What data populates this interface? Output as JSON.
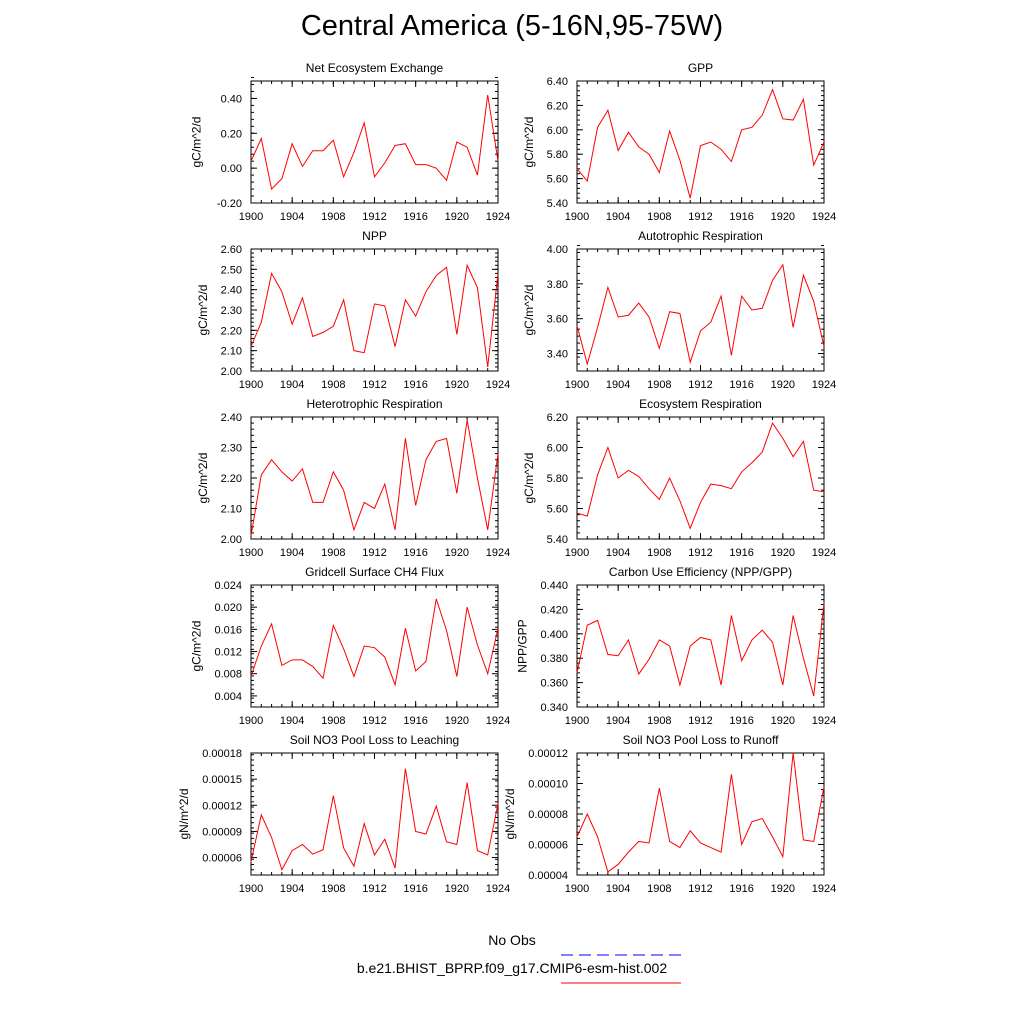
{
  "main_title": "Central America (5-16N,95-75W)",
  "colors": {
    "model_line": "#ff0000",
    "obs_line": "#0000ff",
    "axis": "#000000"
  },
  "legend": {
    "obs_label": "No Obs",
    "model_label": "b.e21.BHIST_BPRP.f09_g17.CMIP6-esm-hist.002"
  },
  "chart_data": [
    {
      "type": "line",
      "title": "Net Ecosystem Exchange",
      "ylabel": "gC/m^2/d",
      "xlim": [
        1900,
        1924
      ],
      "ylim": [
        -0.2,
        0.5
      ],
      "xticks": [
        1900,
        1904,
        1908,
        1912,
        1916,
        1920,
        1924
      ],
      "xtick_labels": [
        "1900",
        "1904",
        "1908",
        "1912",
        "1916",
        "1920",
        "1924"
      ],
      "yticks": [
        -0.2,
        0.0,
        0.2,
        0.4
      ],
      "ytick_labels": [
        "-0.20",
        "0.00",
        "0.20",
        "0.40"
      ],
      "minor_y_step": 0.04,
      "x": [
        1900,
        1901,
        1902,
        1903,
        1904,
        1905,
        1906,
        1907,
        1908,
        1909,
        1910,
        1911,
        1912,
        1913,
        1914,
        1915,
        1916,
        1917,
        1918,
        1919,
        1920,
        1921,
        1922,
        1923,
        1924
      ],
      "series": [
        {
          "name": "b.e21.BHIST_BPRP.f09_g17.CMIP6-esm-hist.002",
          "values": [
            0.04,
            0.17,
            -0.12,
            -0.06,
            0.14,
            0.01,
            0.1,
            0.1,
            0.16,
            -0.05,
            0.09,
            0.26,
            -0.05,
            0.03,
            0.13,
            0.14,
            0.02,
            0.02,
            0.0,
            -0.07,
            0.15,
            0.12,
            -0.04,
            0.42,
            0.04
          ]
        }
      ]
    },
    {
      "type": "line",
      "title": "GPP",
      "ylabel": "gC/m^2/d",
      "xlim": [
        1900,
        1924
      ],
      "ylim": [
        5.4,
        6.4
      ],
      "xticks": [
        1900,
        1904,
        1908,
        1912,
        1916,
        1920,
        1924
      ],
      "xtick_labels": [
        "1900",
        "1904",
        "1908",
        "1912",
        "1916",
        "1920",
        "1924"
      ],
      "yticks": [
        5.4,
        5.6,
        5.8,
        6.0,
        6.2,
        6.4
      ],
      "ytick_labels": [
        "5.40",
        "5.60",
        "5.80",
        "6.00",
        "6.20",
        "6.40"
      ],
      "minor_y_step": 0.04,
      "x": [
        1900,
        1901,
        1902,
        1903,
        1904,
        1905,
        1906,
        1907,
        1908,
        1909,
        1910,
        1911,
        1912,
        1913,
        1914,
        1915,
        1916,
        1917,
        1918,
        1919,
        1920,
        1921,
        1922,
        1923,
        1924
      ],
      "series": [
        {
          "name": "b.e21.BHIST_BPRP.f09_g17.CMIP6-esm-hist.002",
          "values": [
            5.68,
            5.58,
            6.02,
            6.16,
            5.83,
            5.98,
            5.86,
            5.8,
            5.65,
            5.99,
            5.75,
            5.44,
            5.87,
            5.9,
            5.84,
            5.74,
            6.0,
            6.02,
            6.12,
            6.33,
            6.09,
            6.08,
            6.25,
            5.71,
            5.9
          ]
        }
      ]
    },
    {
      "type": "line",
      "title": "NPP",
      "ylabel": "gC/m^2/d",
      "xlim": [
        1900,
        1924
      ],
      "ylim": [
        2.0,
        2.6
      ],
      "xticks": [
        1900,
        1904,
        1908,
        1912,
        1916,
        1920,
        1924
      ],
      "xtick_labels": [
        "1900",
        "1904",
        "1908",
        "1912",
        "1916",
        "1920",
        "1924"
      ],
      "yticks": [
        2.0,
        2.1,
        2.2,
        2.3,
        2.4,
        2.5,
        2.6
      ],
      "ytick_labels": [
        "2.00",
        "2.10",
        "2.20",
        "2.30",
        "2.40",
        "2.50",
        "2.60"
      ],
      "minor_y_step": 0.02,
      "x": [
        1900,
        1901,
        1902,
        1903,
        1904,
        1905,
        1906,
        1907,
        1908,
        1909,
        1910,
        1911,
        1912,
        1913,
        1914,
        1915,
        1916,
        1917,
        1918,
        1919,
        1920,
        1921,
        1922,
        1923,
        1924
      ],
      "series": [
        {
          "name": "b.e21.BHIST_BPRP.f09_g17.CMIP6-esm-hist.002",
          "values": [
            2.12,
            2.24,
            2.48,
            2.39,
            2.23,
            2.36,
            2.17,
            2.19,
            2.22,
            2.35,
            2.1,
            2.09,
            2.33,
            2.32,
            2.12,
            2.35,
            2.27,
            2.39,
            2.47,
            2.51,
            2.18,
            2.52,
            2.41,
            2.02,
            2.48
          ]
        }
      ]
    },
    {
      "type": "line",
      "title": "Autotrophic Respiration",
      "ylabel": "gC/m^2/d",
      "xlim": [
        1900,
        1924
      ],
      "ylim": [
        3.3,
        4.0
      ],
      "xticks": [
        1900,
        1904,
        1908,
        1912,
        1916,
        1920,
        1924
      ],
      "xtick_labels": [
        "1900",
        "1904",
        "1908",
        "1912",
        "1916",
        "1920",
        "1924"
      ],
      "yticks": [
        3.4,
        3.6,
        3.8,
        4.0
      ],
      "ytick_labels": [
        "3.40",
        "3.60",
        "3.80",
        "4.00"
      ],
      "minor_y_step": 0.04,
      "x": [
        1900,
        1901,
        1902,
        1903,
        1904,
        1905,
        1906,
        1907,
        1908,
        1909,
        1910,
        1911,
        1912,
        1913,
        1914,
        1915,
        1916,
        1917,
        1918,
        1919,
        1920,
        1921,
        1922,
        1923,
        1924
      ],
      "series": [
        {
          "name": "b.e21.BHIST_BPRP.f09_g17.CMIP6-esm-hist.002",
          "values": [
            3.56,
            3.34,
            3.55,
            3.78,
            3.61,
            3.62,
            3.69,
            3.61,
            3.43,
            3.64,
            3.63,
            3.35,
            3.53,
            3.58,
            3.73,
            3.39,
            3.73,
            3.65,
            3.66,
            3.82,
            3.91,
            3.55,
            3.85,
            3.7,
            3.44
          ]
        }
      ]
    },
    {
      "type": "line",
      "title": "Heterotrophic Respiration",
      "ylabel": "gC/m^2/d",
      "xlim": [
        1900,
        1924
      ],
      "ylim": [
        2.0,
        2.4
      ],
      "xticks": [
        1900,
        1904,
        1908,
        1912,
        1916,
        1920,
        1924
      ],
      "xtick_labels": [
        "1900",
        "1904",
        "1908",
        "1912",
        "1916",
        "1920",
        "1924"
      ],
      "yticks": [
        2.0,
        2.1,
        2.2,
        2.3,
        2.4
      ],
      "ytick_labels": [
        "2.00",
        "2.10",
        "2.20",
        "2.30",
        "2.40"
      ],
      "minor_y_step": 0.02,
      "x": [
        1900,
        1901,
        1902,
        1903,
        1904,
        1905,
        1906,
        1907,
        1908,
        1909,
        1910,
        1911,
        1912,
        1913,
        1914,
        1915,
        1916,
        1917,
        1918,
        1919,
        1920,
        1921,
        1922,
        1923,
        1924
      ],
      "series": [
        {
          "name": "b.e21.BHIST_BPRP.f09_g17.CMIP6-esm-hist.002",
          "values": [
            2.01,
            2.21,
            2.26,
            2.22,
            2.19,
            2.23,
            2.12,
            2.12,
            2.22,
            2.16,
            2.03,
            2.12,
            2.1,
            2.18,
            2.03,
            2.33,
            2.11,
            2.26,
            2.32,
            2.33,
            2.15,
            2.39,
            2.2,
            2.03,
            2.28
          ]
        }
      ]
    },
    {
      "type": "line",
      "title": "Ecosystem Respiration",
      "ylabel": "gC/m^2/d",
      "xlim": [
        1900,
        1924
      ],
      "ylim": [
        5.4,
        6.2
      ],
      "xticks": [
        1900,
        1904,
        1908,
        1912,
        1916,
        1920,
        1924
      ],
      "xtick_labels": [
        "1900",
        "1904",
        "1908",
        "1912",
        "1916",
        "1920",
        "1924"
      ],
      "yticks": [
        5.4,
        5.6,
        5.8,
        6.0,
        6.2
      ],
      "ytick_labels": [
        "5.40",
        "5.60",
        "5.80",
        "6.00",
        "6.20"
      ],
      "minor_y_step": 0.04,
      "x": [
        1900,
        1901,
        1902,
        1903,
        1904,
        1905,
        1906,
        1907,
        1908,
        1909,
        1910,
        1911,
        1912,
        1913,
        1914,
        1915,
        1916,
        1917,
        1918,
        1919,
        1920,
        1921,
        1922,
        1923,
        1924
      ],
      "series": [
        {
          "name": "b.e21.BHIST_BPRP.f09_g17.CMIP6-esm-hist.002",
          "values": [
            5.57,
            5.55,
            5.82,
            6.0,
            5.8,
            5.85,
            5.81,
            5.73,
            5.66,
            5.8,
            5.65,
            5.47,
            5.64,
            5.76,
            5.75,
            5.73,
            5.84,
            5.9,
            5.97,
            6.16,
            6.06,
            5.94,
            6.04,
            5.72,
            5.71
          ]
        }
      ]
    },
    {
      "type": "line",
      "title": "Gridcell Surface CH4 Flux",
      "ylabel": "gC/m^2/d",
      "xlim": [
        1900,
        1924
      ],
      "ylim": [
        0.002,
        0.024
      ],
      "xticks": [
        1900,
        1904,
        1908,
        1912,
        1916,
        1920,
        1924
      ],
      "xtick_labels": [
        "1900",
        "1904",
        "1908",
        "1912",
        "1916",
        "1920",
        "1924"
      ],
      "yticks": [
        0.004,
        0.008,
        0.012,
        0.016,
        0.02,
        0.024
      ],
      "ytick_labels": [
        "0.004",
        "0.008",
        "0.012",
        "0.016",
        "0.020",
        "0.024"
      ],
      "minor_y_step": 0.0008,
      "x": [
        1900,
        1901,
        1902,
        1903,
        1904,
        1905,
        1906,
        1907,
        1908,
        1909,
        1910,
        1911,
        1912,
        1913,
        1914,
        1915,
        1916,
        1917,
        1918,
        1919,
        1920,
        1921,
        1922,
        1923,
        1924
      ],
      "series": [
        {
          "name": "b.e21.BHIST_BPRP.f09_g17.CMIP6-esm-hist.002",
          "values": [
            0.0075,
            0.013,
            0.017,
            0.0095,
            0.0105,
            0.0105,
            0.0093,
            0.0072,
            0.0167,
            0.0125,
            0.0075,
            0.013,
            0.0127,
            0.011,
            0.006,
            0.0162,
            0.0085,
            0.0102,
            0.0215,
            0.0158,
            0.0075,
            0.02,
            0.0132,
            0.008,
            0.0162
          ]
        }
      ]
    },
    {
      "type": "line",
      "title": "Carbon Use Efficiency (NPP/GPP)",
      "ylabel": "NPP/GPP",
      "xlim": [
        1900,
        1924
      ],
      "ylim": [
        0.34,
        0.44
      ],
      "xticks": [
        1900,
        1904,
        1908,
        1912,
        1916,
        1920,
        1924
      ],
      "xtick_labels": [
        "1900",
        "1904",
        "1908",
        "1912",
        "1916",
        "1920",
        "1924"
      ],
      "yticks": [
        0.34,
        0.36,
        0.38,
        0.4,
        0.42,
        0.44
      ],
      "ytick_labels": [
        "0.340",
        "0.360",
        "0.380",
        "0.400",
        "0.420",
        "0.440"
      ],
      "minor_y_step": 0.004,
      "x": [
        1900,
        1901,
        1902,
        1903,
        1904,
        1905,
        1906,
        1907,
        1908,
        1909,
        1910,
        1911,
        1912,
        1913,
        1914,
        1915,
        1916,
        1917,
        1918,
        1919,
        1920,
        1921,
        1922,
        1923,
        1924
      ],
      "series": [
        {
          "name": "b.e21.BHIST_BPRP.f09_g17.CMIP6-esm-hist.002",
          "values": [
            0.368,
            0.407,
            0.411,
            0.383,
            0.382,
            0.395,
            0.367,
            0.379,
            0.395,
            0.39,
            0.358,
            0.39,
            0.397,
            0.395,
            0.358,
            0.415,
            0.378,
            0.395,
            0.403,
            0.393,
            0.358,
            0.415,
            0.38,
            0.349,
            0.425
          ]
        }
      ]
    },
    {
      "type": "line",
      "title": "Soil NO3 Pool Loss to Leaching",
      "ylabel": "gN/m^2/d",
      "xlim": [
        1900,
        1924
      ],
      "ylim": [
        4e-05,
        0.00018
      ],
      "xticks": [
        1900,
        1904,
        1908,
        1912,
        1916,
        1920,
        1924
      ],
      "xtick_labels": [
        "1900",
        "1904",
        "1908",
        "1912",
        "1916",
        "1920",
        "1924"
      ],
      "yticks": [
        6e-05,
        9e-05,
        0.00012,
        0.00015,
        0.00018
      ],
      "ytick_labels": [
        "0.00006",
        "0.00009",
        "0.00012",
        "0.00015",
        "0.00018"
      ],
      "minor_y_step": 6e-06,
      "x": [
        1900,
        1901,
        1902,
        1903,
        1904,
        1905,
        1906,
        1907,
        1908,
        1909,
        1910,
        1911,
        1912,
        1913,
        1914,
        1915,
        1916,
        1917,
        1918,
        1919,
        1920,
        1921,
        1922,
        1923,
        1924
      ],
      "series": [
        {
          "name": "b.e21.BHIST_BPRP.f09_g17.CMIP6-esm-hist.002",
          "values": [
            5.5e-05,
            0.000109,
            8.3e-05,
            4.6e-05,
            6.8e-05,
            7.5e-05,
            6.4e-05,
            6.9e-05,
            0.000131,
            7.1e-05,
            5e-05,
            9.9e-05,
            6.3e-05,
            8.1e-05,
            4.8e-05,
            0.000162,
            9e-05,
            8.7e-05,
            0.000119,
            7.8e-05,
            7.5e-05,
            0.000146,
            6.8e-05,
            6.3e-05,
            0.000122
          ]
        }
      ]
    },
    {
      "type": "line",
      "title": "Soil NO3 Pool Loss to Runoff",
      "ylabel": "gN/m^2/d",
      "xlim": [
        1900,
        1924
      ],
      "ylim": [
        4e-05,
        0.00012
      ],
      "xticks": [
        1900,
        1904,
        1908,
        1912,
        1916,
        1920,
        1924
      ],
      "xtick_labels": [
        "1900",
        "1904",
        "1908",
        "1912",
        "1916",
        "1920",
        "1924"
      ],
      "yticks": [
        4e-05,
        6e-05,
        8e-05,
        0.0001,
        0.00012
      ],
      "ytick_labels": [
        "0.00004",
        "0.00006",
        "0.00008",
        "0.00010",
        "0.00012"
      ],
      "minor_y_step": 4e-06,
      "x": [
        1900,
        1901,
        1902,
        1903,
        1904,
        1905,
        1906,
        1907,
        1908,
        1909,
        1910,
        1911,
        1912,
        1913,
        1914,
        1915,
        1916,
        1917,
        1918,
        1919,
        1920,
        1921,
        1922,
        1923,
        1924
      ],
      "series": [
        {
          "name": "b.e21.BHIST_BPRP.f09_g17.CMIP6-esm-hist.002",
          "values": [
            6.5e-05,
            8e-05,
            6.5e-05,
            4.2e-05,
            4.7e-05,
            5.5e-05,
            6.2e-05,
            6.1e-05,
            9.7e-05,
            6.2e-05,
            5.8e-05,
            6.9e-05,
            6.1e-05,
            5.8e-05,
            5.5e-05,
            0.000106,
            6e-05,
            7.5e-05,
            7.7e-05,
            6.5e-05,
            5.2e-05,
            0.00012,
            6.3e-05,
            6.2e-05,
            9.8e-05
          ]
        }
      ]
    }
  ]
}
